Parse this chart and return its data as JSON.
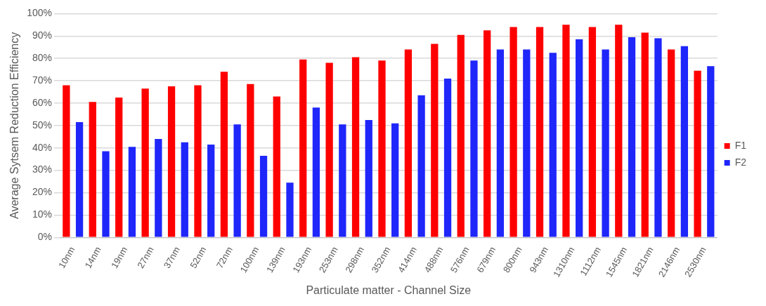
{
  "chart_data": {
    "type": "bar",
    "xlabel": "Particulate matter - Channel Size",
    "ylabel": "Average Sytsem Reduction Efficiency",
    "categories": [
      "10nm",
      "14nm",
      "19nm",
      "27nm",
      "37nm",
      "52nm",
      "72nm",
      "100nm",
      "139nm",
      "193nm",
      "253nm",
      "298nm",
      "352nm",
      "414nm",
      "488nm",
      "576nm",
      "679nm",
      "800nm",
      "943nm",
      "1310nm",
      "1112nm",
      "1545nm",
      "1821nm",
      "2146nm",
      "2530nm"
    ],
    "series": [
      {
        "name": "F1",
        "color": "#ff0000",
        "values": [
          68,
          60.5,
          62.5,
          66.5,
          67.5,
          68,
          74,
          68.5,
          63,
          79.5,
          78,
          80.5,
          79,
          84,
          86.5,
          90.5,
          92.5,
          94,
          94,
          95,
          94,
          95,
          91.5,
          84,
          74.5
        ]
      },
      {
        "name": "F2",
        "color": "#1f26fa",
        "values": [
          51.5,
          38.5,
          40.5,
          44,
          42.5,
          41.5,
          50.5,
          36.5,
          24.5,
          58,
          50.5,
          52.5,
          51,
          63.5,
          71,
          79,
          84,
          84,
          82.5,
          88.5,
          84,
          89.5,
          89,
          85.5,
          76.5
        ]
      }
    ],
    "ylim": [
      0,
      100
    ],
    "yticks": [
      {
        "value": 0,
        "label": "0%"
      },
      {
        "value": 10,
        "label": "10%"
      },
      {
        "value": 20,
        "label": "20%"
      },
      {
        "value": 30,
        "label": "30%"
      },
      {
        "value": 40,
        "label": "40%"
      },
      {
        "value": 50,
        "label": "50%"
      },
      {
        "value": 60,
        "label": "60%"
      },
      {
        "value": 70,
        "label": "70%"
      },
      {
        "value": 80,
        "label": "80%"
      },
      {
        "value": 90,
        "label": "90%"
      },
      {
        "value": 100,
        "label": "100%"
      }
    ],
    "grid": "y",
    "legend": "right"
  }
}
